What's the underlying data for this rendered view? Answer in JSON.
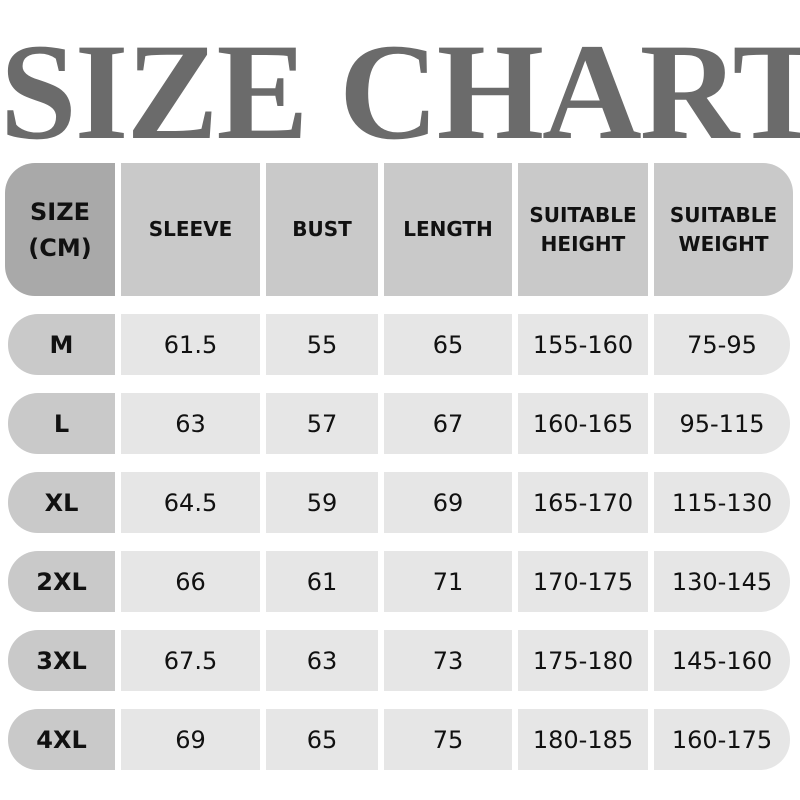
{
  "title": "SIZE CHART",
  "headers": [
    "SIZE\n(CM)",
    "SLEEVE",
    "BUST",
    "LENGTH",
    "SUITABLE\nHEIGHT",
    "SUITABLE\nWEIGHT"
  ],
  "rows": [
    [
      "M",
      "61.5",
      "55",
      "65",
      "155-160",
      "75-95"
    ],
    [
      "L",
      "63",
      "57",
      "67",
      "160-165",
      "95-115"
    ],
    [
      "XL",
      "64.5",
      "59",
      "69",
      "165-170",
      "115-130"
    ],
    [
      "2XL",
      "66",
      "61",
      "71",
      "170-175",
      "130-145"
    ],
    [
      "3XL",
      "67.5",
      "63",
      "73",
      "175-180",
      "145-160"
    ],
    [
      "4XL",
      "69",
      "65",
      "75",
      "180-185",
      "160-175"
    ]
  ],
  "colors": {
    "title": "#6b6b6b",
    "header_first": "#a9a9a9",
    "header": "#c9c9c9",
    "row_label": "#c9c9c9",
    "cell": "#e6e6e6"
  }
}
